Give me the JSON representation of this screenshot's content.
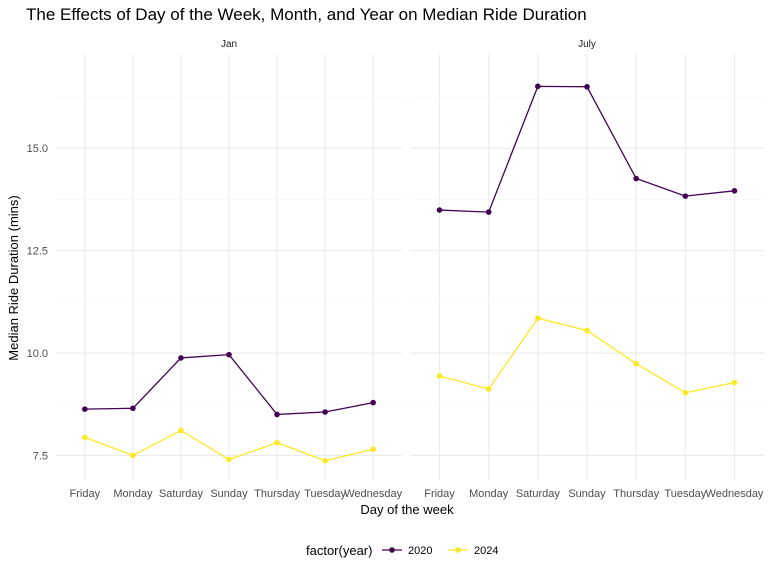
{
  "chart_data": {
    "type": "line",
    "title": "The Effects of Day of the Week, Month, and Year on Median Ride Duration",
    "xlabel": "Day of the week",
    "ylabel": "Median Ride Duration (mins)",
    "categories": [
      "Friday",
      "Monday",
      "Saturday",
      "Sunday",
      "Thursday",
      "Tuesday",
      "Wednesday"
    ],
    "y_ticks": [
      7.5,
      10.0,
      12.5,
      15.0
    ],
    "y_tick_labels": [
      "7.5",
      "10.0",
      "12.5",
      "15.0"
    ],
    "ylim": [
      6.9,
      17.3
    ],
    "grid": true,
    "legend": {
      "title": "factor(year)",
      "position": "bottom",
      "entries": [
        {
          "label": "2020",
          "color": "#440154"
        },
        {
          "label": "2024",
          "color": "#FDE725"
        }
      ]
    },
    "panels": [
      {
        "strip": "Jan",
        "series": [
          {
            "name": "2020",
            "color": "#440154",
            "values": [
              8.63,
              8.65,
              9.88,
              9.96,
              8.5,
              8.56,
              8.79
            ]
          },
          {
            "name": "2024",
            "color": "#FDE725",
            "values": [
              7.94,
              7.5,
              8.11,
              7.4,
              7.81,
              7.37,
              7.65
            ]
          }
        ]
      },
      {
        "strip": "July",
        "series": [
          {
            "name": "2020",
            "color": "#440154",
            "values": [
              13.49,
              13.44,
              16.51,
              16.5,
              14.26,
              13.83,
              13.96
            ]
          },
          {
            "name": "2024",
            "color": "#FDE725",
            "values": [
              9.44,
              9.12,
              10.85,
              10.55,
              9.74,
              9.03,
              9.28
            ]
          }
        ]
      }
    ]
  }
}
